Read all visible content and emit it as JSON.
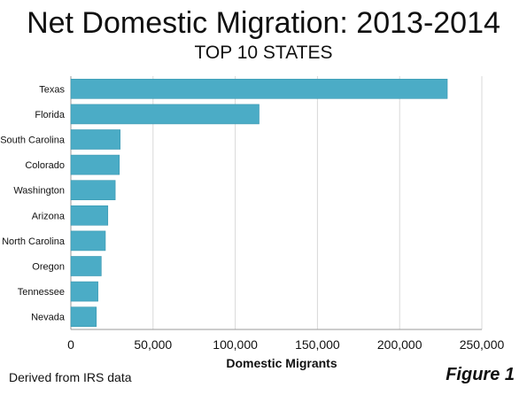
{
  "chart_data": {
    "type": "bar",
    "orientation": "horizontal",
    "title": "Net Domestic Migration: 2013-2014",
    "subtitle": "TOP 10 STATES",
    "xlabel": "Domestic Migrants",
    "ylabel": "",
    "categories": [
      "Texas",
      "Florida",
      "South Carolina",
      "Colorado",
      "Washington",
      "Arizona",
      "North Carolina",
      "Oregon",
      "Tennessee",
      "Nevada"
    ],
    "values": [
      229000,
      114500,
      30000,
      29500,
      27000,
      22500,
      21000,
      18500,
      16500,
      15500
    ],
    "xlim": [
      0,
      250000
    ],
    "xticks": [
      0,
      50000,
      100000,
      150000,
      200000,
      250000
    ],
    "xtick_labels": [
      "0",
      "50,000",
      "100,000",
      "150,000",
      "200,000",
      "250,000"
    ],
    "grid": "vertical",
    "legend": "none",
    "bar_color": "#4bacc6",
    "bar_edge_color": "#3a97b0",
    "grid_color": "#d9d9d9"
  },
  "footer": {
    "source": "Derived from IRS  data",
    "figure_label": "Figure 1"
  }
}
